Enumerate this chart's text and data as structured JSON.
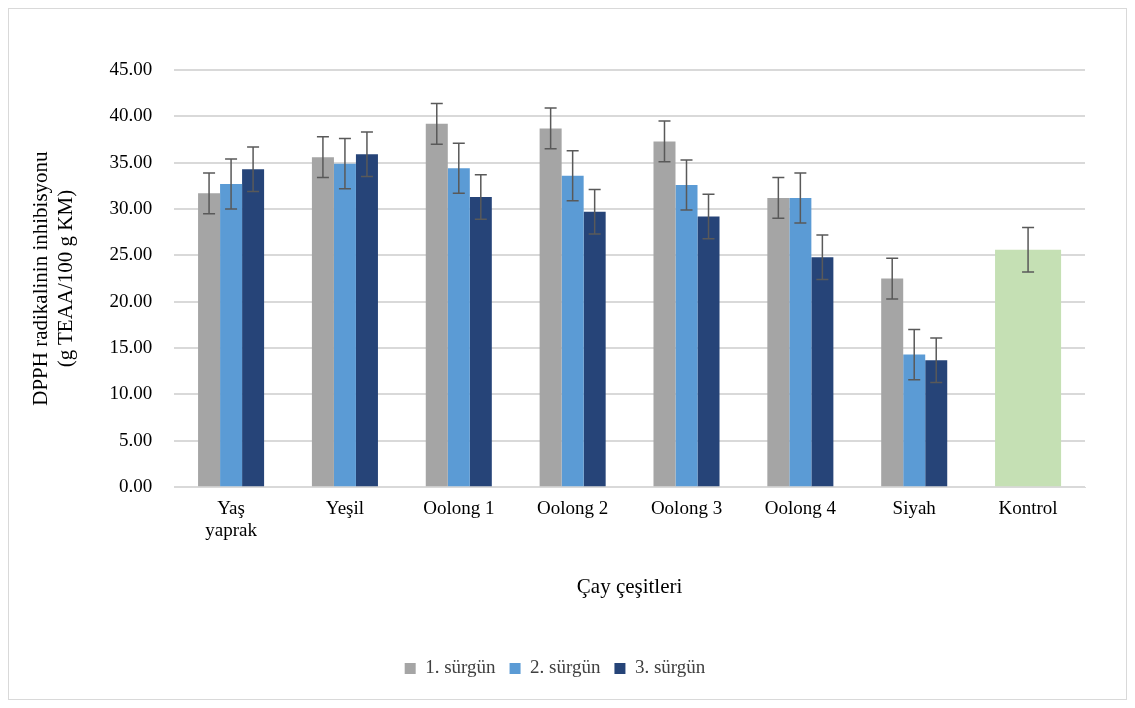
{
  "chart_data": {
    "type": "bar",
    "xlabel": "Çay çeşitleri",
    "ylabel": "DPPH radikalinin inhibisyonu\n(g TEAA/100 g KM)",
    "categories": [
      "Yaş yaprak",
      "Yeşil",
      "Oolong 1",
      "Oolong 2",
      "Oolong 3",
      "Oolong 4",
      "Siyah",
      "Kontrol"
    ],
    "series": [
      {
        "name": "1. sürgün",
        "color": "#a5a5a5",
        "values": [
          31.7,
          35.6,
          39.2,
          38.7,
          37.3,
          31.2,
          22.5,
          null
        ],
        "errors": [
          2.2,
          2.2,
          2.2,
          2.2,
          2.2,
          2.2,
          2.2,
          null
        ]
      },
      {
        "name": "2. sürgün",
        "color": "#5b9bd5",
        "values": [
          32.7,
          34.9,
          34.4,
          33.6,
          32.6,
          31.2,
          14.3,
          null
        ],
        "errors": [
          2.7,
          2.7,
          2.7,
          2.7,
          2.7,
          2.7,
          2.7,
          null
        ]
      },
      {
        "name": "3. sürgün",
        "color": "#264478",
        "values": [
          34.3,
          35.9,
          31.3,
          29.7,
          29.2,
          24.8,
          13.7,
          null
        ],
        "errors": [
          2.4,
          2.4,
          2.4,
          2.4,
          2.4,
          2.4,
          2.4,
          null
        ]
      },
      {
        "color": "#c5e0b4",
        "values": [
          null,
          null,
          null,
          null,
          null,
          null,
          null,
          25.6
        ],
        "errors": [
          null,
          null,
          null,
          null,
          null,
          null,
          null,
          2.4
        ]
      }
    ],
    "ylim": [
      0,
      45
    ],
    "yticks": [
      {
        "value": 0,
        "label": "0.00"
      },
      {
        "value": 5,
        "label": "5.00"
      },
      {
        "value": 10,
        "label": "10.00"
      },
      {
        "value": 15,
        "label": "15.00"
      },
      {
        "value": 20,
        "label": "20.00"
      },
      {
        "value": 25,
        "label": "25.00"
      },
      {
        "value": 30,
        "label": "30.00"
      },
      {
        "value": 35,
        "label": "35.00"
      },
      {
        "value": 40,
        "label": "40.00"
      },
      {
        "value": 45,
        "label": "45.00"
      }
    ],
    "grid": "y",
    "legend": "bottom"
  }
}
